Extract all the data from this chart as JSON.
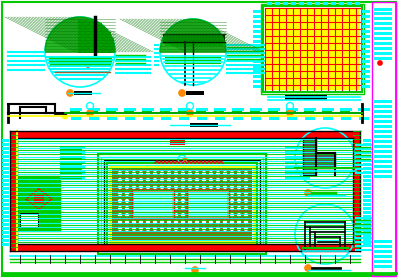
{
  "bg": "#ffffff",
  "cyan": "#00ffff",
  "red": "#ff0000",
  "green": "#00cc00",
  "lgreen": "#00ff00",
  "yellow": "#ffff00",
  "black": "#000000",
  "orange": "#ff8800",
  "brown": "#8B6914",
  "gray": "#555555",
  "magenta": "#ff00ff",
  "white": "#ffffff"
}
